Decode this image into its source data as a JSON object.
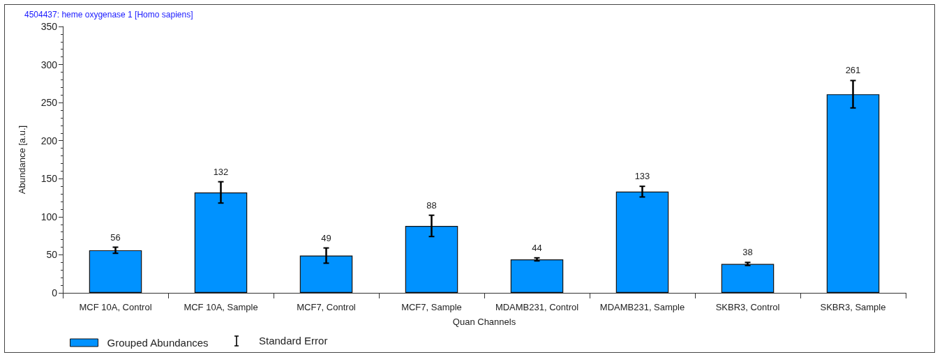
{
  "chart_data": {
    "type": "bar",
    "title": "4504437: heme oxygenase 1 [Homo sapiens]",
    "xlabel": "Quan Channels",
    "ylabel": "Abundance [a.u.]",
    "categories": [
      "MCF 10A, Control",
      "MCF 10A, Sample",
      "MCF7, Control",
      "MCF7, Sample",
      "MDAMB231, Control",
      "MDAMB231, Sample",
      "SKBR3, Control",
      "SKBR3, Sample"
    ],
    "series": [
      {
        "name": "Grouped Abundances",
        "color": "#0092ff",
        "values": [
          56,
          132,
          49,
          88,
          44,
          133,
          38,
          261
        ],
        "errors": [
          4,
          14,
          10,
          14,
          2,
          7,
          2,
          18
        ]
      }
    ],
    "annotations": [
      "Standard Error"
    ],
    "ylim": [
      0,
      350
    ],
    "yticks": [
      0,
      50,
      100,
      150,
      200,
      250,
      300,
      350
    ],
    "data_labels": true,
    "grid": false,
    "legend": "bottom left"
  }
}
